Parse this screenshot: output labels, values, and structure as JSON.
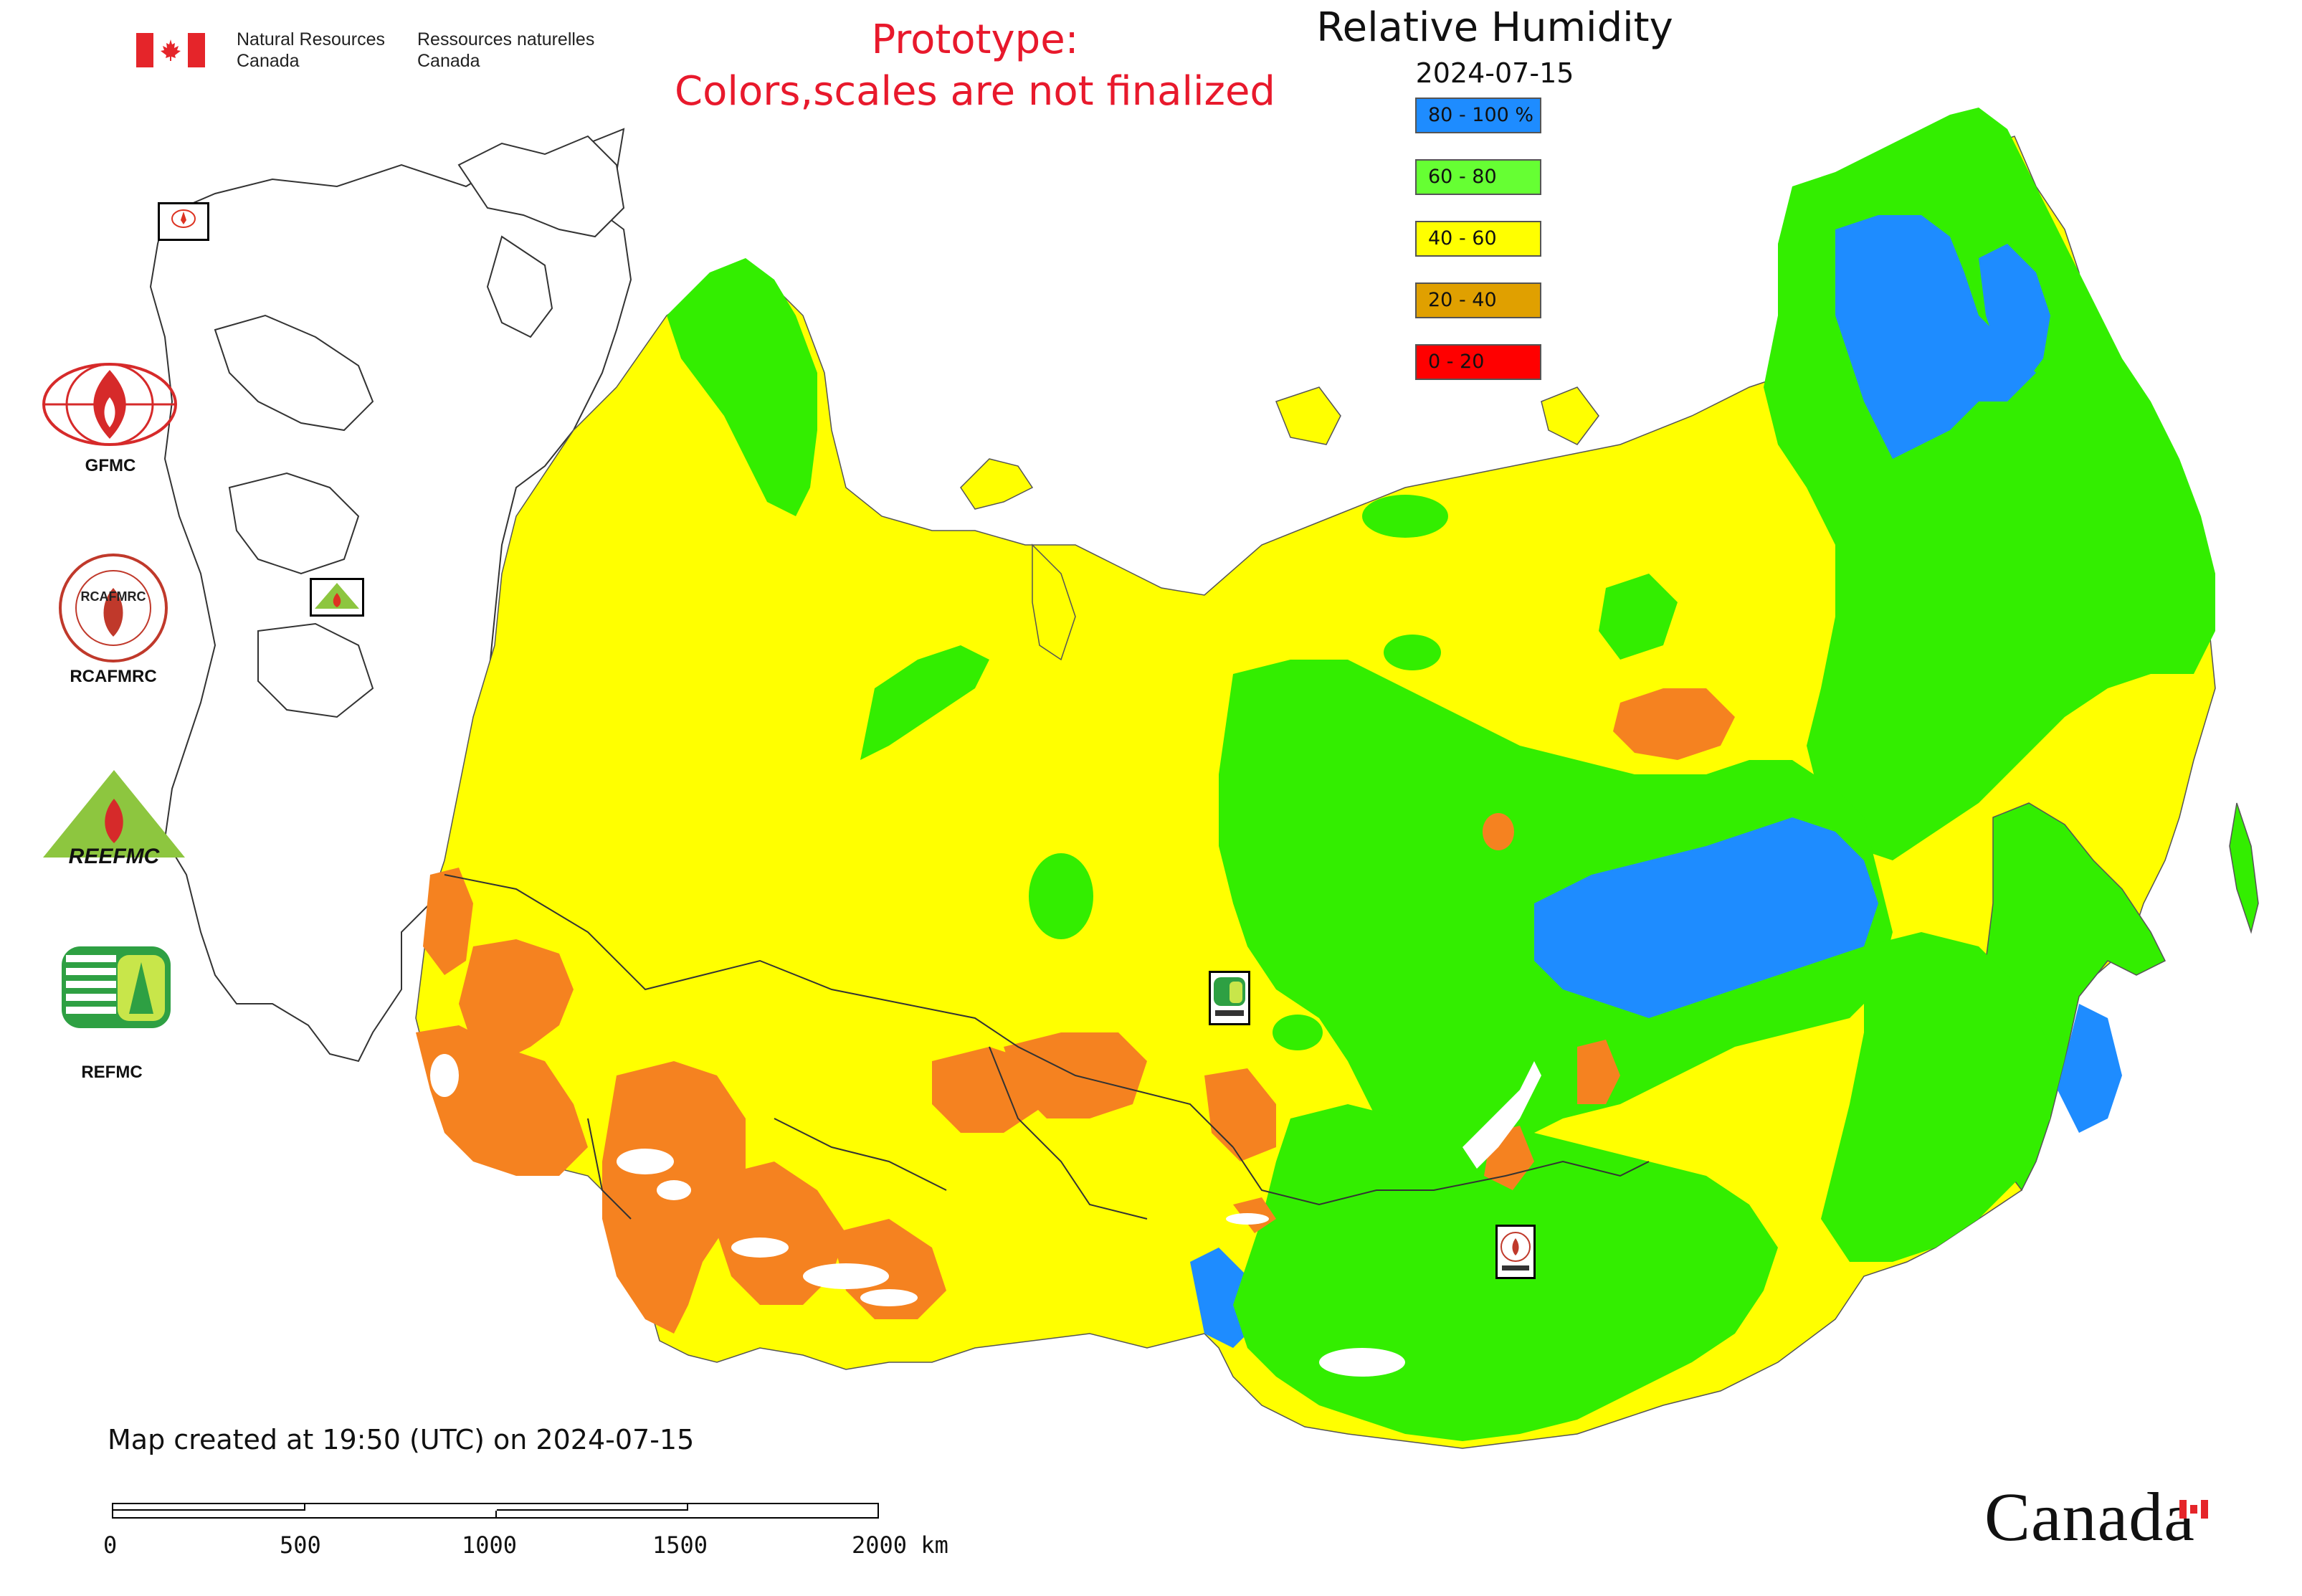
{
  "header": {
    "org_en_1": "Natural Resources",
    "org_en_2": "Canada",
    "org_fr_1": "Ressources naturelles",
    "org_fr_2": "Canada",
    "prototype_line1": "Prototype:",
    "prototype_line2": "Colors,scales are not finalized"
  },
  "map": {
    "title": "Relative Humidity",
    "date": "2024-07-15",
    "legend": [
      {
        "label": "80 - 100 %",
        "color": "#1e8cff"
      },
      {
        "label": "60 - 80",
        "color": "#66ff33"
      },
      {
        "label": "40 - 60",
        "color": "#ffff00"
      },
      {
        "label": "20 - 40",
        "color": "#e0a000"
      },
      {
        "label": "0 - 20",
        "color": "#ff0000"
      }
    ],
    "colors": {
      "very_humid": "#1e8cff",
      "humid": "#33ee00",
      "moderate": "#ffff00",
      "dry": "#f58220",
      "water_nodata": "#ffffff",
      "border": "#333333"
    }
  },
  "organizations": {
    "gfmc": "GFMC",
    "rcafmrc": "RCAFMRC",
    "reefmc": "REEFMC",
    "refmc": "REFMC",
    "reefmc_logo_text": "REEFMC",
    "rcafmrc_logo_text": "RCAFMRC"
  },
  "footer": {
    "created": "Map created at 19:50 (UTC) on 2024-07-15",
    "scale_labels": [
      "0",
      "500",
      "1000",
      "1500",
      "2000 km"
    ],
    "wordmark": "Canada"
  }
}
